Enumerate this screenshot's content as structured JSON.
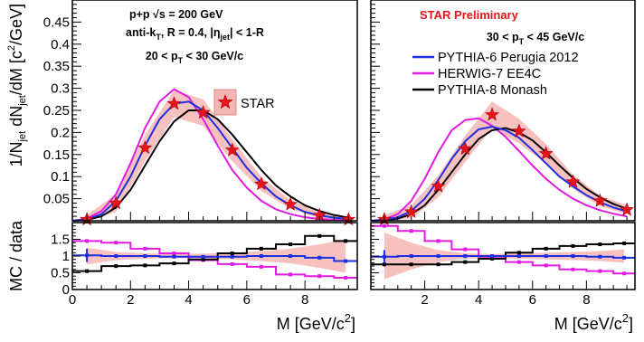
{
  "chart_data": {
    "type": "line",
    "xlabel": "M [GeV/c^2]",
    "ylabel": "1/N_jet dN_jet/dM [c^2/GeV]",
    "ratio_ylabel": "MC / data",
    "xlim": [
      0,
      10
    ],
    "ylim": [
      0,
      0.5
    ],
    "ratio_ylim": [
      0,
      2
    ],
    "x_ticks": [
      "0",
      "2",
      "4",
      "6",
      "8"
    ],
    "y_ticks": [
      "0.05",
      "0.1",
      "0.15",
      "0.2",
      "0.25",
      "0.3",
      "0.35",
      "0.4",
      "0.45"
    ],
    "ratio_y_ticks": [
      "0",
      "0.5",
      "1",
      "1.5"
    ],
    "colors": {
      "star": "#e8141a",
      "band": "#f4b6b3",
      "pythia6": "#1f2fe0",
      "herwig": "#e21be0",
      "pythia8": "#000000"
    },
    "preliminary": "STAR Preliminary",
    "annotations": {
      "collision": "p+p √s = 200 GeV",
      "algorithm": "anti-kT, R = 0.4, |ηjet| < 1-R"
    },
    "legend": {
      "star": "STAR",
      "pythia6": "PYTHIA-6 Perugia 2012",
      "herwig": "HERWIG-7 EE4C",
      "pythia8": "PYTHIA-8 Monash"
    },
    "panels": [
      {
        "pt_range": "20 < pT < 30 GeV/c",
        "star": {
          "x": [
            0.5,
            1.5,
            2.5,
            3.5,
            4.5,
            5.5,
            6.5,
            7.5,
            8.5,
            9.5
          ],
          "y": [
            0.003,
            0.04,
            0.165,
            0.265,
            0.245,
            0.16,
            0.083,
            0.037,
            0.012,
            0.003
          ],
          "band": [
            0.01,
            0.02,
            0.03,
            0.03,
            0.03,
            0.025,
            0.016,
            0.01,
            0.006,
            0.004
          ]
        },
        "pythia6": {
          "x": [
            0,
            0.5,
            1,
            1.5,
            2,
            2.5,
            3,
            3.5,
            4,
            4.5,
            5,
            5.5,
            6,
            6.5,
            7,
            7.5,
            8,
            8.5,
            9,
            9.5
          ],
          "y": [
            0,
            0.003,
            0.015,
            0.045,
            0.1,
            0.17,
            0.23,
            0.265,
            0.27,
            0.25,
            0.21,
            0.165,
            0.12,
            0.085,
            0.055,
            0.035,
            0.02,
            0.012,
            0.007,
            0.004
          ]
        },
        "herwig": {
          "x": [
            0,
            0.5,
            1,
            1.5,
            2,
            2.5,
            3,
            3.5,
            4,
            4.5,
            5,
            5.5,
            6,
            6.5,
            7,
            7.5,
            8,
            8.5,
            9,
            9.5
          ],
          "y": [
            0,
            0.005,
            0.022,
            0.06,
            0.13,
            0.21,
            0.27,
            0.298,
            0.28,
            0.23,
            0.17,
            0.115,
            0.075,
            0.045,
            0.026,
            0.015,
            0.008,
            0.004,
            0.002,
            0.001
          ]
        },
        "pythia8": {
          "x": [
            0,
            0.5,
            1,
            1.5,
            2,
            2.5,
            3,
            3.5,
            4,
            4.5,
            5,
            5.5,
            6,
            6.5,
            7,
            7.5,
            8,
            8.5,
            9,
            9.5
          ],
          "y": [
            0,
            0.002,
            0.01,
            0.03,
            0.07,
            0.125,
            0.18,
            0.225,
            0.25,
            0.25,
            0.23,
            0.195,
            0.155,
            0.115,
            0.08,
            0.055,
            0.035,
            0.022,
            0.013,
            0.007
          ]
        },
        "ratio": {
          "x_edges": [
            0,
            1,
            2,
            3,
            4,
            5,
            6,
            7,
            8,
            9,
            9.8
          ],
          "pythia6": [
            1.02,
            1.0,
            1.0,
            0.98,
            0.98,
            0.98,
            1.0,
            1.0,
            0.95,
            0.85
          ],
          "herwig": [
            1.45,
            1.4,
            1.22,
            1.08,
            0.88,
            0.76,
            0.68,
            0.45,
            0.4,
            0.35
          ],
          "pythia8": [
            0.55,
            0.7,
            0.72,
            0.78,
            0.9,
            1.08,
            1.22,
            1.35,
            1.6,
            1.45
          ],
          "band": [
            0.25,
            0.12,
            0.08,
            0.06,
            0.07,
            0.1,
            0.15,
            0.22,
            0.35,
            0.5
          ]
        }
      },
      {
        "pt_range": "30 < pT < 45 GeV/c",
        "star": {
          "x": [
            0.5,
            1.5,
            2.5,
            3.5,
            4.5,
            5.5,
            6.5,
            7.5,
            8.5,
            9.5
          ],
          "y": [
            0.003,
            0.02,
            0.078,
            0.163,
            0.24,
            0.203,
            0.152,
            0.088,
            0.045,
            0.025
          ],
          "band": [
            0.01,
            0.015,
            0.025,
            0.03,
            0.03,
            0.028,
            0.022,
            0.016,
            0.012,
            0.01
          ]
        },
        "pythia6": {
          "x": [
            0,
            0.5,
            1,
            1.5,
            2,
            2.5,
            3,
            3.5,
            4,
            4.5,
            5,
            5.5,
            6,
            6.5,
            7,
            7.5,
            8,
            8.5,
            9,
            9.5
          ],
          "y": [
            0,
            0.002,
            0.008,
            0.022,
            0.05,
            0.092,
            0.14,
            0.18,
            0.207,
            0.213,
            0.205,
            0.188,
            0.16,
            0.13,
            0.1,
            0.078,
            0.058,
            0.042,
            0.03,
            0.021
          ]
        },
        "herwig": {
          "x": [
            0,
            0.5,
            1,
            1.5,
            2,
            2.5,
            3,
            3.5,
            4,
            4.5,
            5,
            5.5,
            6,
            6.5,
            7,
            7.5,
            8,
            8.5,
            9,
            9.5
          ],
          "y": [
            0,
            0.003,
            0.015,
            0.045,
            0.095,
            0.155,
            0.205,
            0.228,
            0.232,
            0.215,
            0.19,
            0.158,
            0.125,
            0.095,
            0.07,
            0.05,
            0.035,
            0.024,
            0.016,
            0.01
          ]
        },
        "pythia8": {
          "x": [
            0,
            0.5,
            1,
            1.5,
            2,
            2.5,
            3,
            3.5,
            4,
            4.5,
            5,
            5.5,
            6,
            6.5,
            7,
            7.5,
            8,
            8.5,
            9,
            9.5
          ],
          "y": [
            0,
            0.001,
            0.005,
            0.015,
            0.035,
            0.07,
            0.11,
            0.15,
            0.185,
            0.205,
            0.21,
            0.2,
            0.182,
            0.155,
            0.125,
            0.097,
            0.072,
            0.053,
            0.038,
            0.027
          ]
        },
        "ratio": {
          "x_edges": [
            0,
            1,
            2,
            3,
            4,
            5,
            6,
            7,
            8,
            9,
            9.8
          ],
          "pythia6": [
            0.98,
            1.0,
            1.0,
            1.0,
            1.0,
            1.0,
            1.0,
            1.0,
            0.98,
            0.95
          ],
          "herwig": [
            1.9,
            1.75,
            1.45,
            1.2,
            0.98,
            0.82,
            0.72,
            0.6,
            0.55,
            0.48
          ],
          "pythia8": [
            0.75,
            0.75,
            0.75,
            0.82,
            0.92,
            1.1,
            1.22,
            1.3,
            1.35,
            1.38
          ],
          "band": [
            0.7,
            0.4,
            0.18,
            0.08,
            0.06,
            0.08,
            0.1,
            0.12,
            0.15,
            0.2
          ]
        }
      }
    ]
  }
}
